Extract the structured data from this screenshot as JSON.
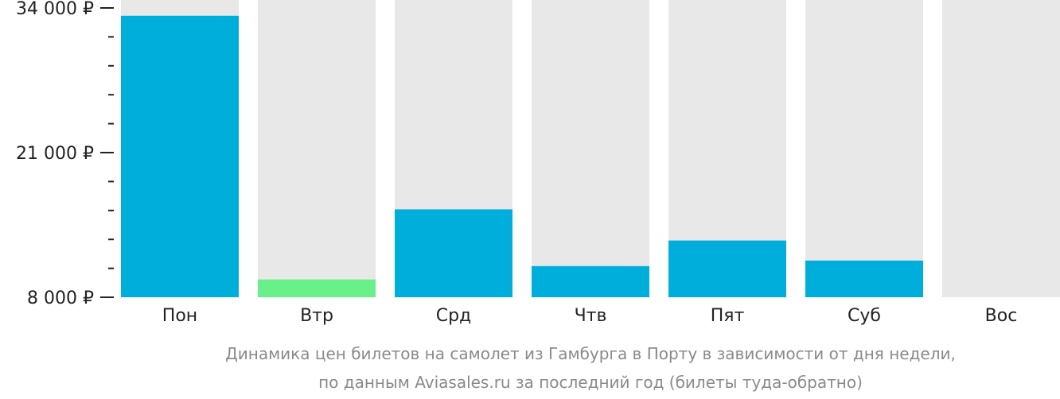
{
  "chart_data": {
    "type": "bar",
    "categories": [
      "Пон",
      "Втр",
      "Срд",
      "Чтв",
      "Пят",
      "Суб",
      "Вос"
    ],
    "values": [
      33300,
      9600,
      15900,
      10800,
      13100,
      11300,
      null
    ],
    "y_ticks": [
      {
        "value": 8000,
        "label": "8 000 ₽"
      },
      {
        "value": 21000,
        "label": "21 000 ₽"
      },
      {
        "value": 34000,
        "label": "34 000 ₽"
      }
    ],
    "ylim": [
      8000,
      34000
    ],
    "cheapest_index": 1,
    "colors": {
      "bar": "#00aedb",
      "cheapest": "#6af08a",
      "background_column": "#e8e8e8",
      "axis": "#222222",
      "caption": "#8a8a8a"
    },
    "grid": false,
    "legend": "none"
  },
  "caption": {
    "line1": "Динамика цен билетов на самолет из Гамбурга в Порту в зависимости от дня недели,",
    "line2": "по данным Aviasales.ru за последний год (билеты туда-обратно)"
  }
}
